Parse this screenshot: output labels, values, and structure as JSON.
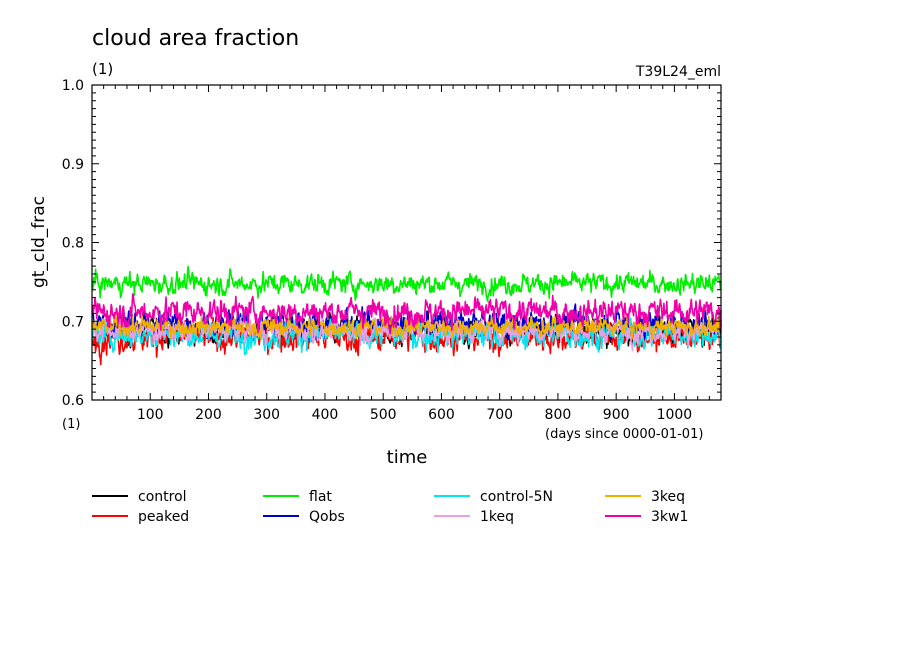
{
  "chart_data": {
    "type": "line",
    "title": "cloud area fraction",
    "subtitle": "(1)",
    "run_label": "T39L24_eml",
    "xlabel": "time",
    "xunits": "(days since 0000-01-01)",
    "ylabel": "gt_cld_frac",
    "yunits": "(1)",
    "xlim": [
      0,
      1080
    ],
    "ylim": [
      0.6,
      1.0
    ],
    "xticks": [
      "100",
      "200",
      "300",
      "400",
      "500",
      "600",
      "700",
      "800",
      "900",
      "1000"
    ],
    "yticks": [
      "0.6",
      "0.7",
      "0.8",
      "0.9",
      "1.0"
    ],
    "grid": false,
    "legend_position": "bottom",
    "series": [
      {
        "name": "control",
        "color": "#000000",
        "mean": 0.688,
        "noise": 0.01,
        "min": 0.637,
        "max": 0.733
      },
      {
        "name": "peaked",
        "color": "#ff0000",
        "mean": 0.68,
        "noise": 0.011,
        "min": 0.633,
        "max": 0.718
      },
      {
        "name": "flat",
        "color": "#00ee00",
        "mean": 0.748,
        "noise": 0.008,
        "min": 0.722,
        "max": 0.778
      },
      {
        "name": "Qobs",
        "color": "#0000cc",
        "mean": 0.697,
        "noise": 0.01,
        "min": 0.664,
        "max": 0.732
      },
      {
        "name": "control-5N",
        "color": "#00e5ee",
        "mean": 0.683,
        "noise": 0.01,
        "min": 0.631,
        "max": 0.715
      },
      {
        "name": "1keq",
        "color": "#e8a0e0",
        "mean": 0.688,
        "noise": 0.008,
        "min": 0.658,
        "max": 0.712
      },
      {
        "name": "3keq",
        "color": "#f0b000",
        "mean": 0.693,
        "noise": 0.007,
        "min": 0.668,
        "max": 0.718
      },
      {
        "name": "3kw1",
        "color": "#ee00aa",
        "mean": 0.712,
        "noise": 0.01,
        "min": 0.68,
        "max": 0.745
      }
    ]
  }
}
